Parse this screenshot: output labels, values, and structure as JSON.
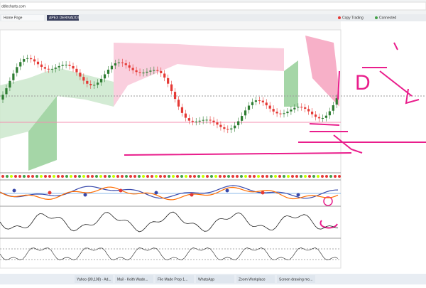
{
  "browser": {
    "url": "ddlecharts.com",
    "tabs": [
      "Home Page",
      "APEX DERIVADOS"
    ],
    "status": [
      "Copy Trading",
      "Connected"
    ]
  },
  "annotations": [
    "D"
  ],
  "taskbar": {
    "items": [
      "Yahoo (80,108) - Ad...",
      "Mail - Keith Wade...",
      "File Made Prop 1...",
      "WhatsApp",
      "Zoom Workplace",
      "Screen drawing mo..."
    ]
  }
}
